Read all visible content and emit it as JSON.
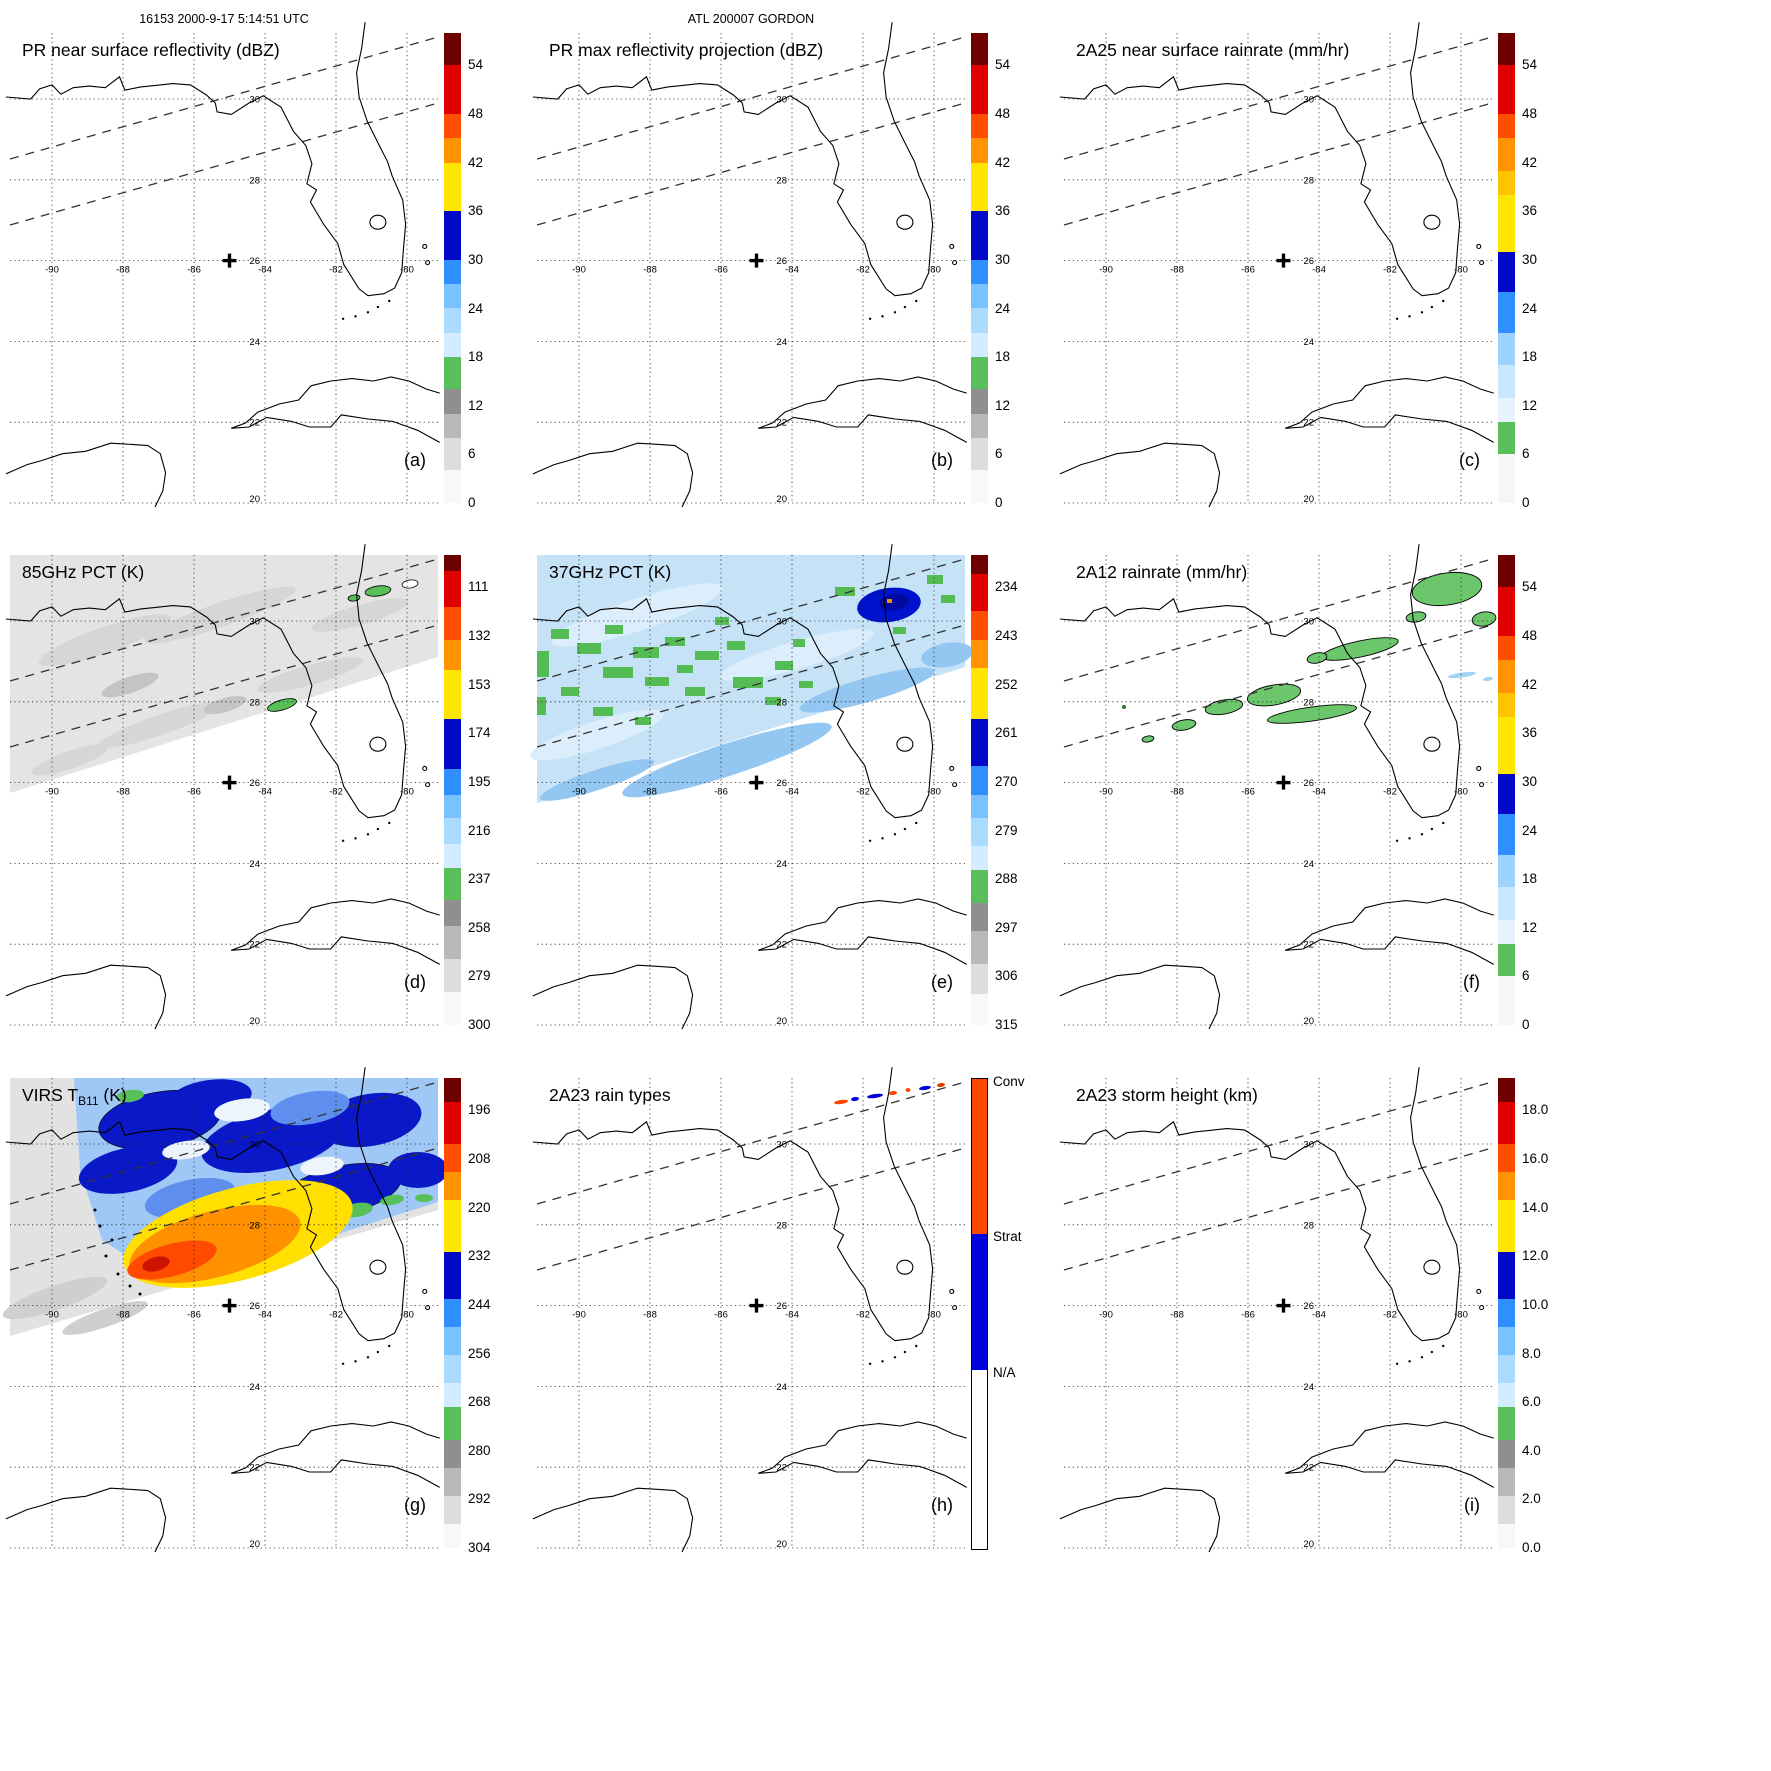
{
  "header": {
    "left": "16153 2000-9-17 5:14:51 UTC",
    "center": "ATL 200007 GORDON"
  },
  "map": {
    "lon_values": [
      -90,
      -88,
      -86,
      -84,
      -82,
      -80
    ],
    "lon_labels": [
      "-90",
      "-88",
      "-86",
      "-84",
      "-82",
      "-80"
    ],
    "lat_values": [
      30,
      28,
      26,
      24,
      22,
      20
    ],
    "lat_labels": [
      "30",
      "28",
      "26",
      "24",
      "22",
      "20"
    ],
    "marker_lon": -85,
    "marker_lat": 26
  },
  "panels": [
    {
      "id": "a",
      "title": "PR near surface reflectivity (dBZ)",
      "letter": "(a)",
      "colorbar": "dbz",
      "overlay": "none"
    },
    {
      "id": "b",
      "title": "PR max reflectivity projection (dBZ)",
      "letter": "(b)",
      "colorbar": "dbz",
      "overlay": "none"
    },
    {
      "id": "c",
      "title": "2A25 near surface rainrate (mm/hr)",
      "letter": "(c)",
      "colorbar": "rain",
      "overlay": "none"
    },
    {
      "id": "d",
      "title": "85GHz PCT (K)",
      "letter": "(d)",
      "colorbar": "pct85",
      "overlay": "pct85"
    },
    {
      "id": "e",
      "title": "37GHz PCT (K)",
      "letter": "(e)",
      "colorbar": "pct37",
      "overlay": "pct37"
    },
    {
      "id": "f",
      "title": "2A12 rainrate (mm/hr)",
      "letter": "(f)",
      "colorbar": "rain",
      "overlay": "rain12"
    },
    {
      "id": "g",
      "title_pre": "VIRS T",
      "title_sub": "B11",
      "title_post": " (K)",
      "letter": "(g)",
      "colorbar": "virs",
      "overlay": "virs"
    },
    {
      "id": "h",
      "title": "2A23 rain types",
      "letter": "(h)",
      "colorbar": "raintype",
      "overlay": "raintype"
    },
    {
      "id": "i",
      "title": "2A23 storm height (km)",
      "letter": "(i)",
      "colorbar": "height",
      "overlay": "none"
    }
  ],
  "colorbars": {
    "dbz": {
      "ticks": [
        "54",
        "48",
        "42",
        "36",
        "30",
        "24",
        "18",
        "12",
        "6",
        "0"
      ],
      "tick_fracs": [
        6.9,
        17.24,
        27.59,
        37.93,
        48.28,
        58.62,
        68.97,
        79.31,
        89.66,
        100
      ],
      "segments": [
        [
          6.9,
          "#6e0000"
        ],
        [
          10.34,
          "#df0000"
        ],
        [
          5.17,
          "#ff4e00"
        ],
        [
          5.17,
          "#ff9400"
        ],
        [
          10.34,
          "#ffe600"
        ],
        [
          10.34,
          "#0009c8"
        ],
        [
          5.17,
          "#2f8fff"
        ],
        [
          5.17,
          "#7ac2ff"
        ],
        [
          5.17,
          "#abdbff"
        ],
        [
          5.17,
          "#d4ecff"
        ],
        [
          6.9,
          "#5abf5a"
        ],
        [
          5.17,
          "#8f8f8f"
        ],
        [
          5.17,
          "#b9b9b9"
        ],
        [
          6.9,
          "#dddddd"
        ],
        [
          6.88,
          "#f8f8f8"
        ]
      ]
    },
    "rain": {
      "ticks": [
        "54",
        "48",
        "42",
        "36",
        "30",
        "24",
        "18",
        "12",
        "6",
        "0"
      ],
      "tick_fracs": [
        6.9,
        17.24,
        27.59,
        37.93,
        48.28,
        58.62,
        68.97,
        79.31,
        89.66,
        100
      ],
      "segments": [
        [
          6.9,
          "#6e0000"
        ],
        [
          10.34,
          "#df0000"
        ],
        [
          5.17,
          "#ff4e00"
        ],
        [
          6.9,
          "#ff9400"
        ],
        [
          5.17,
          "#ffc400"
        ],
        [
          12.07,
          "#ffe600"
        ],
        [
          8.62,
          "#0009c8"
        ],
        [
          8.62,
          "#2f8fff"
        ],
        [
          6.9,
          "#9ed3ff"
        ],
        [
          6.9,
          "#c9e8ff"
        ],
        [
          5.17,
          "#e6f3ff"
        ],
        [
          6.9,
          "#5abf5a"
        ],
        [
          10.34,
          "#f6f6f6"
        ]
      ]
    },
    "pct85": {
      "ticks": [
        "111",
        "132",
        "153",
        "174",
        "195",
        "216",
        "237",
        "258",
        "279",
        "300"
      ],
      "tick_fracs": [
        6.9,
        17.24,
        27.59,
        37.93,
        48.28,
        58.62,
        68.97,
        79.31,
        89.66,
        100
      ],
      "segments": [
        [
          3.5,
          "#6e0000"
        ],
        [
          7.5,
          "#df0000"
        ],
        [
          7,
          "#ff4e00"
        ],
        [
          6.5,
          "#ff9400"
        ],
        [
          10.5,
          "#ffe600"
        ],
        [
          10.5,
          "#0009c8"
        ],
        [
          5.5,
          "#2f8fff"
        ],
        [
          5,
          "#7ac2ff"
        ],
        [
          5.5,
          "#abdbff"
        ],
        [
          5,
          "#d4ecff"
        ],
        [
          7,
          "#5abf5a"
        ],
        [
          5.5,
          "#8f8f8f"
        ],
        [
          7,
          "#b9b9b9"
        ],
        [
          7,
          "#dddddd"
        ],
        [
          7,
          "#f8f8f8"
        ]
      ]
    },
    "pct37": {
      "ticks": [
        "234",
        "243",
        "252",
        "261",
        "270",
        "279",
        "288",
        "297",
        "306",
        "315"
      ],
      "tick_fracs": [
        6.9,
        17.24,
        27.59,
        37.93,
        48.28,
        58.62,
        68.97,
        79.31,
        89.66,
        100
      ],
      "segments": [
        [
          4,
          "#6e0000"
        ],
        [
          8,
          "#df0000"
        ],
        [
          6,
          "#ff4e00"
        ],
        [
          6,
          "#ff9400"
        ],
        [
          11,
          "#ffe600"
        ],
        [
          10,
          "#0009c8"
        ],
        [
          6,
          "#2f8fff"
        ],
        [
          5,
          "#7ac2ff"
        ],
        [
          6,
          "#abdbff"
        ],
        [
          5,
          "#d4ecff"
        ],
        [
          7,
          "#5abf5a"
        ],
        [
          6,
          "#8f8f8f"
        ],
        [
          7,
          "#b9b9b9"
        ],
        [
          6.5,
          "#dddddd"
        ],
        [
          6.5,
          "#f8f8f8"
        ]
      ]
    },
    "virs": {
      "ticks": [
        "196",
        "208",
        "220",
        "232",
        "244",
        "256",
        "268",
        "280",
        "292",
        "304"
      ],
      "tick_fracs": [
        6.9,
        17.24,
        27.59,
        37.93,
        48.28,
        58.62,
        68.97,
        79.31,
        89.66,
        100
      ],
      "segments": [
        [
          5,
          "#6e0000"
        ],
        [
          9,
          "#df0000"
        ],
        [
          6,
          "#ff4e00"
        ],
        [
          6,
          "#ff9400"
        ],
        [
          11,
          "#ffe600"
        ],
        [
          10,
          "#0009c8"
        ],
        [
          6,
          "#2f8fff"
        ],
        [
          6,
          "#7ac2ff"
        ],
        [
          6,
          "#abdbff"
        ],
        [
          5,
          "#d4ecff"
        ],
        [
          7,
          "#5abf5a"
        ],
        [
          6,
          "#8f8f8f"
        ],
        [
          6,
          "#b9b9b9"
        ],
        [
          6,
          "#dddddd"
        ],
        [
          5,
          "#f8f8f8"
        ]
      ]
    },
    "height": {
      "ticks": [
        "18.0",
        "16.0",
        "14.0",
        "12.0",
        "10.0",
        "8.0",
        "6.0",
        "4.0",
        "2.0",
        "0.0"
      ],
      "tick_fracs": [
        6.9,
        17.24,
        27.59,
        37.93,
        48.28,
        58.62,
        68.97,
        79.31,
        89.66,
        100
      ],
      "segments": [
        [
          5,
          "#6e0000"
        ],
        [
          9,
          "#df0000"
        ],
        [
          6,
          "#ff4e00"
        ],
        [
          6,
          "#ff9400"
        ],
        [
          11,
          "#ffe600"
        ],
        [
          10,
          "#0009c8"
        ],
        [
          6,
          "#2f8fff"
        ],
        [
          6,
          "#7ac2ff"
        ],
        [
          6,
          "#abdbff"
        ],
        [
          5,
          "#d4ecff"
        ],
        [
          7,
          "#5abf5a"
        ],
        [
          6,
          "#8f8f8f"
        ],
        [
          6,
          "#b9b9b9"
        ],
        [
          6,
          "#dddddd"
        ],
        [
          5,
          "#f8f8f8"
        ]
      ]
    },
    "raintype": {
      "labels": [
        "Conv",
        "Strat",
        "N/A"
      ],
      "label_fracs": [
        0,
        33,
        62
      ],
      "segments": [
        [
          33,
          "#ff4900"
        ],
        [
          29,
          "#0000dd"
        ],
        [
          38,
          "#ffffff"
        ]
      ]
    }
  }
}
